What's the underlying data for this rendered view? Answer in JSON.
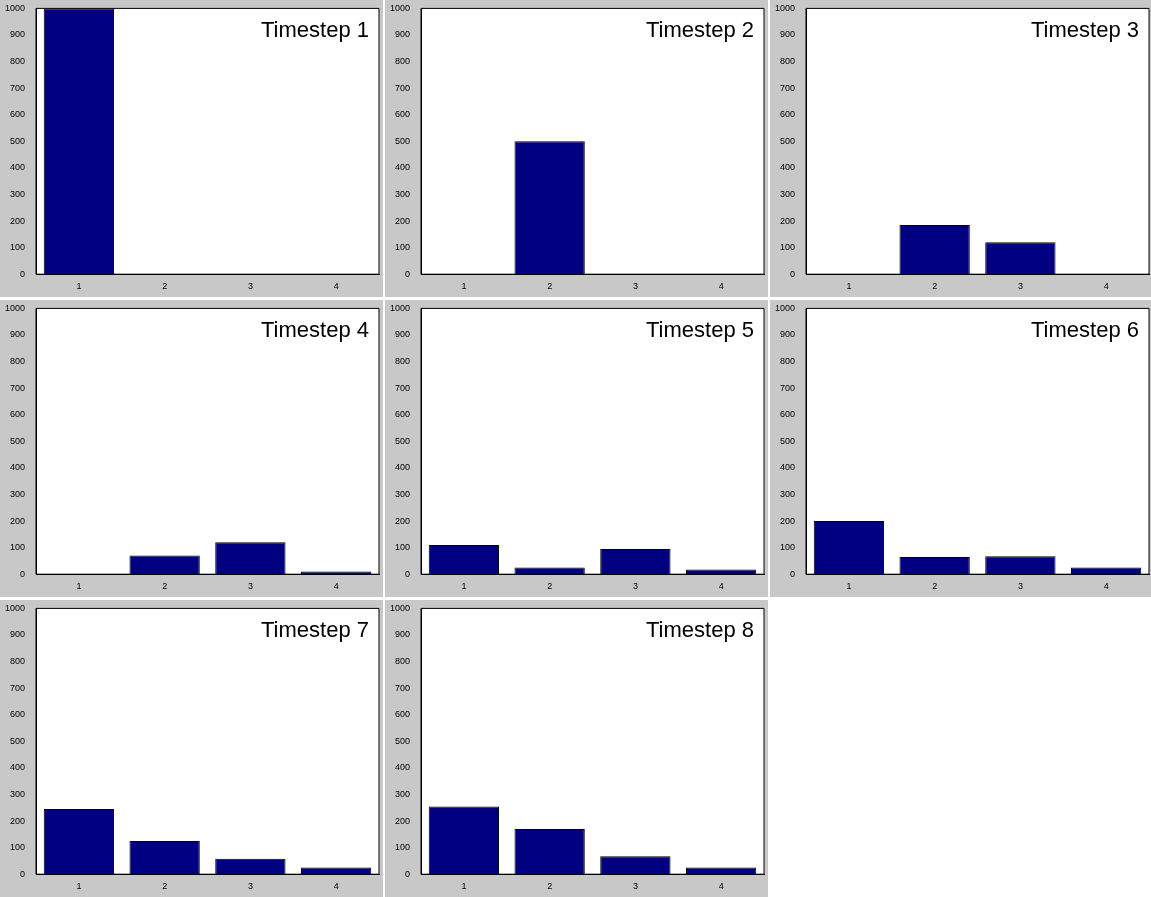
{
  "chart_data": [
    {
      "type": "bar",
      "title": "Timestep 1",
      "categories": [
        "1",
        "2",
        "3",
        "4"
      ],
      "values": [
        1000,
        0,
        0,
        0
      ],
      "color": "#000080",
      "ylim": [
        0,
        1000
      ],
      "yticks": [
        0,
        100,
        200,
        300,
        400,
        500,
        600,
        700,
        800,
        900,
        1000
      ]
    },
    {
      "type": "bar",
      "title": "Timestep 2",
      "categories": [
        "1",
        "2",
        "3",
        "4"
      ],
      "values": [
        0,
        500,
        0,
        0
      ],
      "color": "#000080",
      "ylim": [
        0,
        1000
      ],
      "yticks": [
        0,
        100,
        200,
        300,
        400,
        500,
        600,
        700,
        800,
        900,
        1000
      ]
    },
    {
      "type": "bar",
      "title": "Timestep 3",
      "categories": [
        "1",
        "2",
        "3",
        "4"
      ],
      "values": [
        0,
        185,
        120,
        0
      ],
      "color": "#000080",
      "ylim": [
        0,
        1000
      ],
      "yticks": [
        0,
        100,
        200,
        300,
        400,
        500,
        600,
        700,
        800,
        900,
        1000
      ]
    },
    {
      "type": "bar",
      "title": "Timestep 4",
      "categories": [
        "1",
        "2",
        "3",
        "4"
      ],
      "values": [
        0,
        70,
        120,
        10
      ],
      "color": "#000080",
      "ylim": [
        0,
        1000
      ],
      "yticks": [
        0,
        100,
        200,
        300,
        400,
        500,
        600,
        700,
        800,
        900,
        1000
      ]
    },
    {
      "type": "bar",
      "title": "Timestep 5",
      "categories": [
        "1",
        "2",
        "3",
        "4"
      ],
      "values": [
        110,
        25,
        95,
        18
      ],
      "color": "#000080",
      "ylim": [
        0,
        1000
      ],
      "yticks": [
        0,
        100,
        200,
        300,
        400,
        500,
        600,
        700,
        800,
        900,
        1000
      ]
    },
    {
      "type": "bar",
      "title": "Timestep 6",
      "categories": [
        "1",
        "2",
        "3",
        "4"
      ],
      "values": [
        200,
        65,
        68,
        25
      ],
      "color": "#000080",
      "ylim": [
        0,
        1000
      ],
      "yticks": [
        0,
        100,
        200,
        300,
        400,
        500,
        600,
        700,
        800,
        900,
        1000
      ]
    },
    {
      "type": "bar",
      "title": "Timestep 7",
      "categories": [
        "1",
        "2",
        "3",
        "4"
      ],
      "values": [
        245,
        125,
        58,
        25
      ],
      "color": "#000080",
      "ylim": [
        0,
        1000
      ],
      "yticks": [
        0,
        100,
        200,
        300,
        400,
        500,
        600,
        700,
        800,
        900,
        1000
      ]
    },
    {
      "type": "bar",
      "title": "Timestep 8",
      "categories": [
        "1",
        "2",
        "3",
        "4"
      ],
      "values": [
        255,
        170,
        68,
        25
      ],
      "color": "#000080",
      "ylim": [
        0,
        1000
      ],
      "yticks": [
        0,
        100,
        200,
        300,
        400,
        500,
        600,
        700,
        800,
        900,
        1000
      ]
    }
  ]
}
